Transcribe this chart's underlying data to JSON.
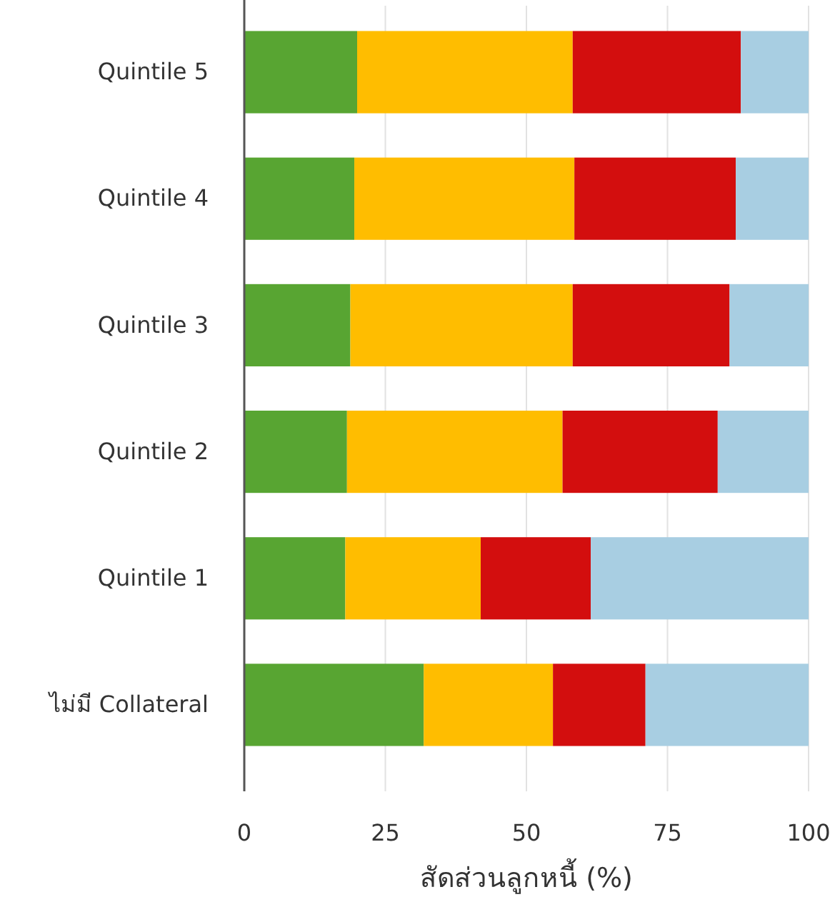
{
  "chart_data": {
    "type": "bar",
    "orientation": "horizontal",
    "stacked": true,
    "xlabel": "สัดส่วนลูกหนี้ (%)",
    "categories": [
      "Quintile 5",
      "Quintile 4",
      "Quintile 3",
      "Quintile 2",
      "Quintile 1",
      "ไม่มี Collateral"
    ],
    "series": [
      {
        "color": "#58a532",
        "values": [
          20,
          19.5,
          18.8,
          18.2,
          17.9,
          31.8
        ]
      },
      {
        "color": "#ffbd00",
        "values": [
          38.2,
          39,
          39.4,
          38.2,
          24,
          22.9
        ]
      },
      {
        "color": "#d30e0e",
        "values": [
          29.8,
          28.6,
          27.8,
          27.5,
          19.5,
          16.4
        ]
      },
      {
        "color": "#a8cee2",
        "values": [
          12,
          12.9,
          14,
          16.1,
          38.6,
          28.9
        ]
      }
    ],
    "xlim": [
      0,
      100
    ],
    "xticks": [
      0,
      25,
      50,
      75,
      100
    ],
    "grid": "x"
  }
}
